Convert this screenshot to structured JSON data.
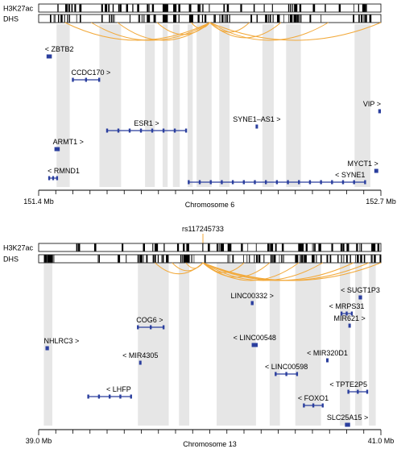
{
  "colors": {
    "highlight": "#e6e6e6",
    "arc": "#f2a93a",
    "gene": "#2b3f9e",
    "track_border": "#000000",
    "marker": "#f2a93a"
  },
  "panels": [
    {
      "id": "top",
      "track_labels": [
        "H3K27ac",
        "DHS"
      ],
      "axis": {
        "start": 151.4,
        "end": 152.7,
        "start_label": "151.4 Mb",
        "end_label": "152.7 Mb",
        "chromosome_label": "Chromosome 6"
      },
      "highlights": [
        [
          151.468,
          151.518
        ],
        [
          151.631,
          151.713
        ],
        [
          151.804,
          151.841
        ],
        [
          151.871,
          151.89
        ],
        [
          151.91,
          151.936
        ],
        [
          151.966,
          151.985
        ],
        [
          152.0,
          152.057
        ],
        [
          152.086,
          152.125
        ],
        [
          152.25,
          152.293
        ],
        [
          152.34,
          152.396
        ],
        [
          152.6,
          152.66
        ]
      ],
      "arcs": [
        [
          151.5,
          152.05
        ],
        [
          151.6,
          152.05
        ],
        [
          151.7,
          152.05
        ],
        [
          151.85,
          152.05
        ],
        [
          152.05,
          152.32
        ],
        [
          152.05,
          152.5
        ],
        [
          152.05,
          152.7
        ],
        [
          151.98,
          152.05
        ],
        [
          152.05,
          152.2
        ]
      ],
      "genes": [
        {
          "label": "< ZBTB2",
          "start": 151.43,
          "end": 151.45,
          "label_pos": "above-left"
        },
        {
          "label": "CCDC170 >",
          "start": 151.53,
          "end": 151.63,
          "label_pos": "above-left"
        },
        {
          "label": "ESR1 >",
          "start": 151.66,
          "end": 151.96,
          "label_pos": "above-mid"
        },
        {
          "label": "SYNE1–AS1 >",
          "start": 152.224,
          "end": 152.227,
          "label_pos": "above-mid"
        },
        {
          "label": "VIP >",
          "start": 152.69,
          "end": 152.7,
          "label_pos": "above-right"
        },
        {
          "label": "ARMT1 >",
          "start": 151.46,
          "end": 151.48,
          "label_pos": "above-left"
        },
        {
          "label": "MYCT1 >",
          "start": 152.675,
          "end": 152.69,
          "label_pos": "above-right"
        },
        {
          "label": "< RMND1",
          "start": 151.44,
          "end": 151.47,
          "label_pos": "above-left"
        },
        {
          "label": "< SYNE1",
          "start": 151.97,
          "end": 152.64,
          "label_pos": "above-right"
        }
      ]
    },
    {
      "id": "bottom",
      "snp_label": "rs117245733",
      "snp_pos": 39.96,
      "track_labels": [
        "H3K27ac",
        "DHS"
      ],
      "axis": {
        "start": 39.0,
        "end": 41.0,
        "start_label": "39.0 Mb",
        "end_label": "41.0 Mb",
        "chromosome_label": "Chromosome 13"
      },
      "highlights": [
        [
          39.03,
          39.08
        ],
        [
          39.58,
          39.76
        ],
        [
          39.82,
          39.88
        ],
        [
          40.04,
          40.27
        ],
        [
          40.35,
          40.41
        ],
        [
          40.5,
          40.65
        ],
        [
          40.76,
          40.82
        ],
        [
          40.85,
          40.89
        ],
        [
          40.93,
          40.97
        ]
      ],
      "arcs": [
        [
          39.68,
          39.96
        ],
        [
          39.78,
          39.96
        ],
        [
          39.86,
          39.96
        ],
        [
          39.96,
          40.2
        ],
        [
          39.96,
          40.35
        ],
        [
          39.96,
          40.52
        ],
        [
          39.96,
          40.66
        ],
        [
          39.96,
          40.84
        ],
        [
          39.96,
          40.93
        ],
        [
          39.96,
          41.0
        ]
      ],
      "genes": [
        {
          "label": "LINC00332 >",
          "start": 40.24,
          "end": 40.256,
          "label_pos": "above-mid"
        },
        {
          "label": "< SUGT1P3",
          "start": 40.87,
          "end": 40.89,
          "label_pos": "above-mid"
        },
        {
          "label": "< MRPS31",
          "start": 40.77,
          "end": 40.83,
          "label_pos": "above-mid"
        },
        {
          "label": "MIR621 >",
          "start": 40.81,
          "end": 40.815,
          "label_pos": "above-mid"
        },
        {
          "label": "NHLRC3 >",
          "start": 39.04,
          "end": 39.06,
          "label_pos": "above-left"
        },
        {
          "label": "COG6 >",
          "start": 39.58,
          "end": 39.73,
          "label_pos": "above-left"
        },
        {
          "label": "< LINC00548",
          "start": 40.245,
          "end": 40.28,
          "label_pos": "above-mid"
        },
        {
          "label": "< MIR4305",
          "start": 39.587,
          "end": 39.592,
          "label_pos": "above-mid"
        },
        {
          "label": "< MIR320D1",
          "start": 40.68,
          "end": 40.683,
          "label_pos": "above-mid"
        },
        {
          "label": "< LINC00598",
          "start": 40.385,
          "end": 40.51,
          "label_pos": "above-mid"
        },
        {
          "label": "< LHFP",
          "start": 39.29,
          "end": 39.54,
          "label_pos": "above-right"
        },
        {
          "label": "< TPTE2P5",
          "start": 40.81,
          "end": 40.92,
          "label_pos": "above-right"
        },
        {
          "label": "< FOXO1",
          "start": 40.55,
          "end": 40.66,
          "label_pos": "above-mid"
        },
        {
          "label": "SLC25A15 >",
          "start": 40.79,
          "end": 40.82,
          "label_pos": "above-mid"
        }
      ]
    }
  ]
}
